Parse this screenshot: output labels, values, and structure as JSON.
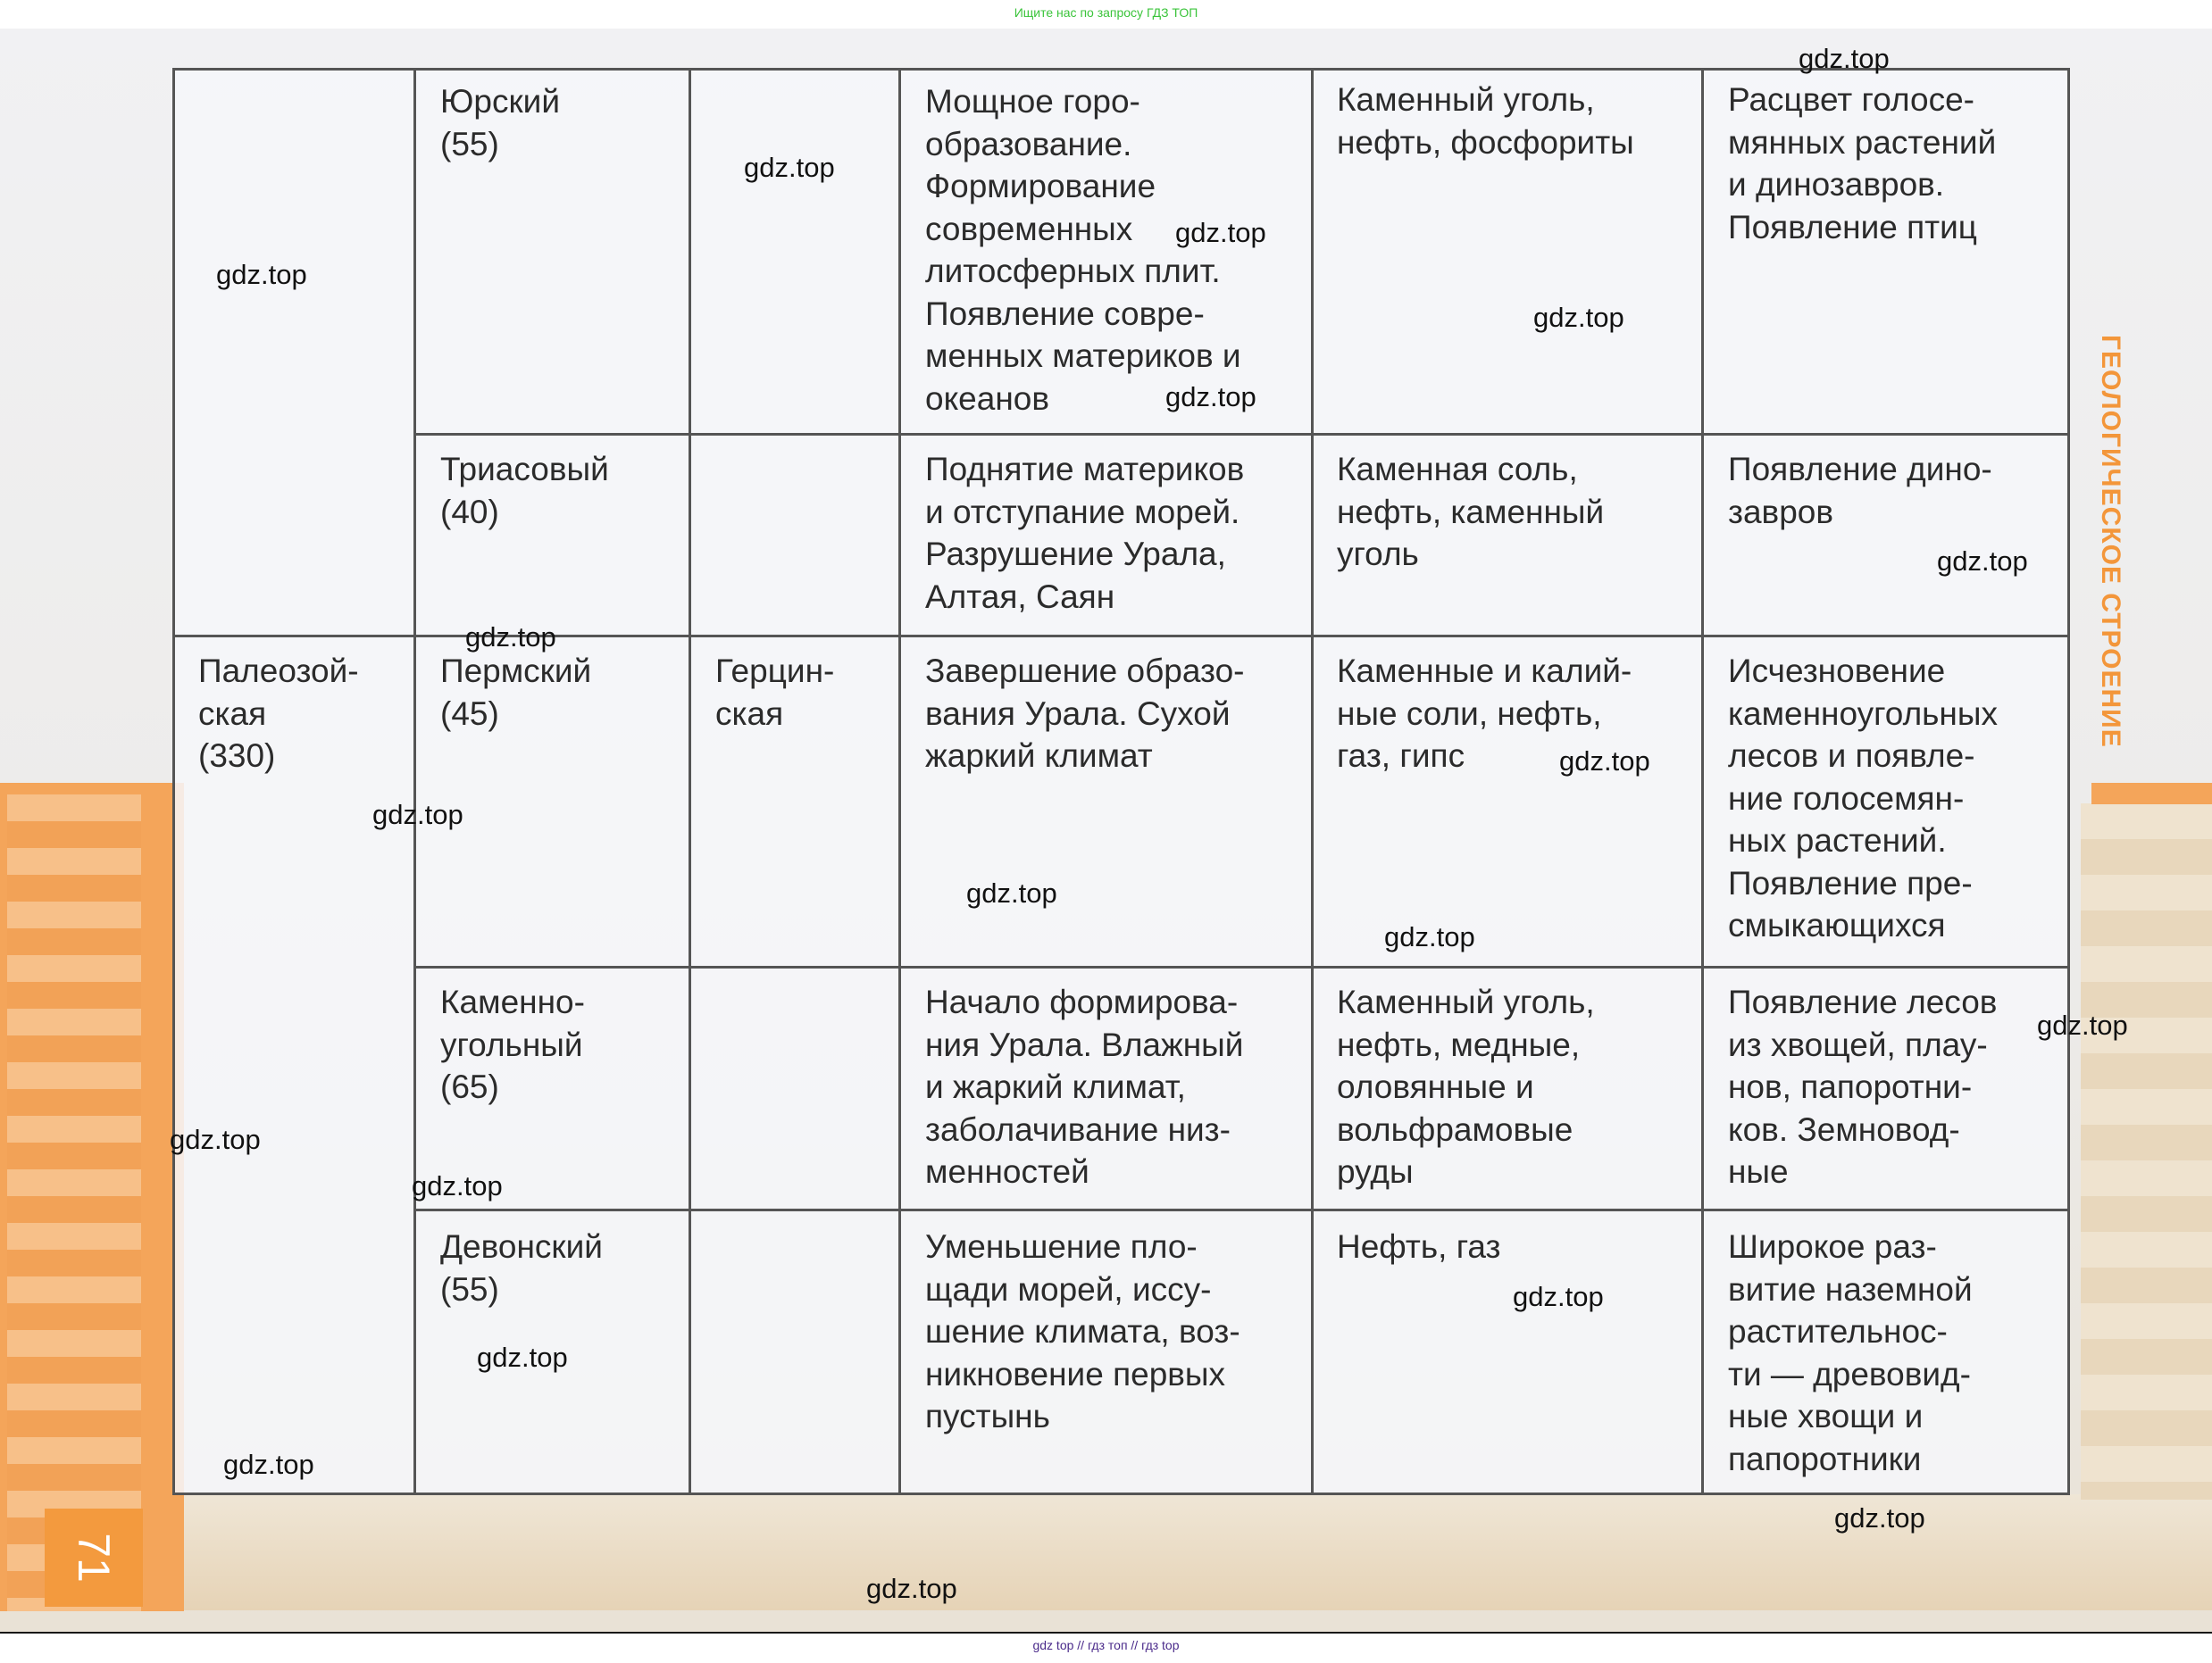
{
  "header": {
    "note": "Ищите нас по запросу ГДЗ ТОП"
  },
  "page": {
    "number": "71",
    "side_title": "ГЕОЛОГИЧЕСКОЕ СТРОЕНИЕ"
  },
  "table": {
    "eras": [
      {
        "label": ""
      },
      {
        "label": "Палеозой-\nская\n(330)"
      }
    ],
    "folds": [
      {
        "label": ""
      },
      {
        "label": "Герцин-\nская"
      }
    ],
    "rows": [
      {
        "period": "Юрский\n(55)",
        "events": "Мощное горо-\nобразование.\nФормирование\nсовременных\nлитосферных плит.\nПоявление совре-\nменных материков и\nокеанов",
        "minerals": "Каменный уголь,\nнефть, фосфориты",
        "life": "Расцвет голосе-\nмянных растений\nи динозавров.\nПоявление птиц"
      },
      {
        "period": "Триасовый\n(40)",
        "events": "Поднятие материков\nи отступание морей.\nРазрушение Урала,\nАлтая, Саян",
        "minerals": "Каменная соль,\nнефть, каменный\nуголь",
        "life": "Появление дино-\nзавров"
      },
      {
        "period": "Пермский\n(45)",
        "events": "Завершение образо-\nвания Урала. Сухой\nжаркий климат",
        "minerals": "Каменные и калий-\nные соли, нефть,\nгаз, гипс",
        "life": "Исчезновение\nкаменноугольных\nлесов и появле-\nние голосемян-\nных растений.\nПоявление пре-\nсмыкающихся"
      },
      {
        "period": "Каменно-\nугольный\n(65)",
        "events": "Начало формирова-\nния Урала. Влажный\nи жаркий климат,\nзаболачивание низ-\nменностей",
        "minerals": "Каменный уголь,\nнефть, медные,\nоловянные и\nвольфрамовые\nруды",
        "life": "Появление лесов\nиз хвощей, плау-\nнов, папоротни-\nков. Земновод-\nные"
      },
      {
        "period": "Девонский\n(55)",
        "events": "Уменьшение пло-\nщади морей, иссу-\nшение климата, воз-\nникновение первых\nпустынь",
        "minerals": "Нефть, газ",
        "life": "Широкое раз-\nвитие наземной\nрастительнос-\nти — древовид-\nные хвощи и\nпапоротники"
      }
    ]
  },
  "watermarks": [
    "gdz.top",
    "gdz.top",
    "gdz.top",
    "gdz.top",
    "gdz.top",
    "gdz.top",
    "gdz.top",
    "gdz.top",
    "gdz.top",
    "gdz.top",
    "gdz.top",
    "gdz.top",
    "gdz.top",
    "gdz.top",
    "gdz.top",
    "gdz.top",
    "gdz.top",
    "gdz.top",
    "gdz.top",
    "gdz.top"
  ],
  "footer": {
    "text": "gdz top  //  гдз топ  //  гдз top"
  },
  "colors": {
    "accent_orange": "#f4a55a",
    "header_green": "#3bc43b",
    "footer_purple": "#4a2a8a"
  }
}
